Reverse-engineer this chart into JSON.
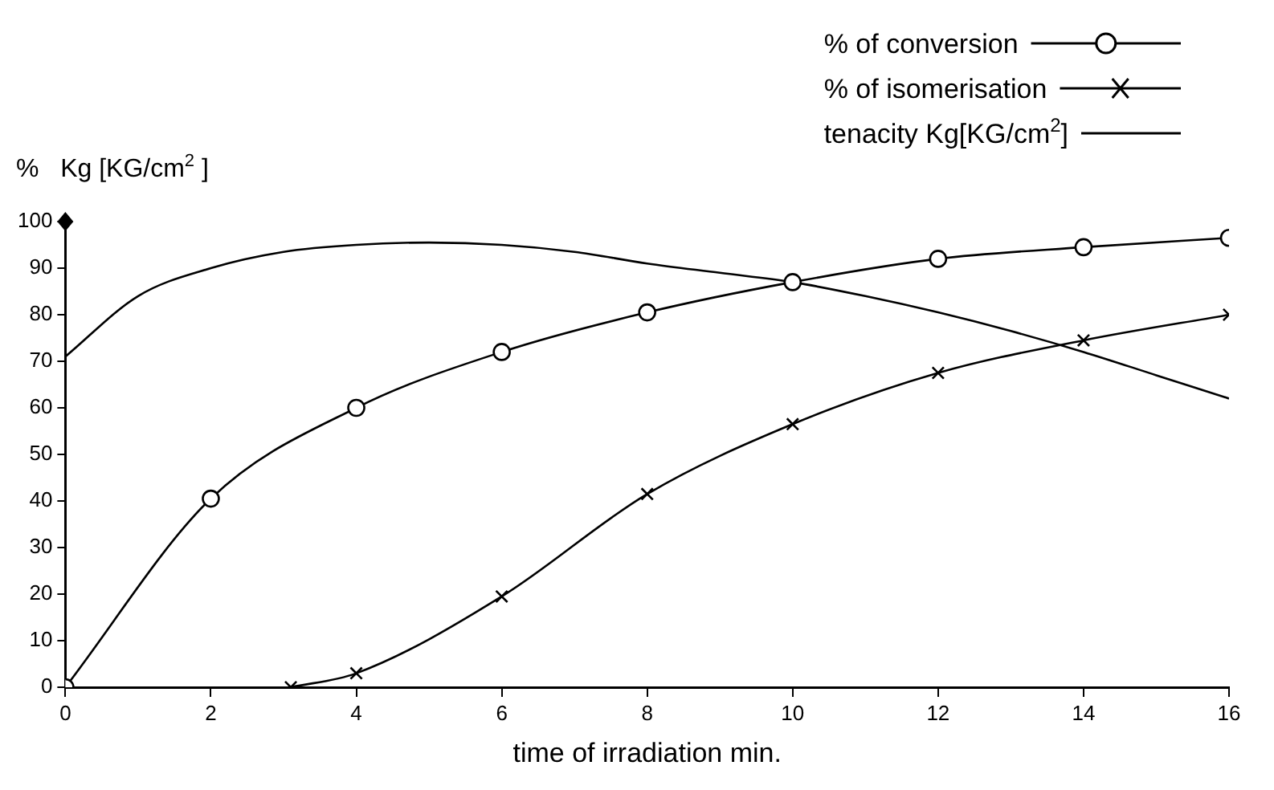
{
  "chart_data": {
    "type": "line",
    "xlabel": "time of irradiation min.",
    "ylabel": "%   Kg [KG/cm$^{2}$ ]",
    "xlim": [
      0,
      16
    ],
    "xticks": [
      0,
      2,
      4,
      6,
      8,
      10,
      12,
      14,
      16
    ],
    "ylim": [
      0,
      100
    ],
    "yticks": [
      0,
      10,
      20,
      30,
      40,
      50,
      60,
      70,
      80,
      90,
      100
    ],
    "grid": false,
    "legend": "top right",
    "line_style": "solid",
    "series": [
      {
        "name": "% of conversion",
        "color": "#000000",
        "marker": "circle",
        "x": [
          0,
          2,
          4,
          6,
          8,
          10,
          12,
          14,
          16
        ],
        "values": [
          0,
          40.5,
          60,
          72,
          80.5,
          87,
          92,
          94.5,
          96.5
        ]
      },
      {
        "name": "% of isomerisation",
        "color": "#000000",
        "marker": "cross",
        "x": [
          3.1,
          4,
          6,
          8,
          10,
          12,
          14,
          16
        ],
        "values": [
          0,
          3,
          19.5,
          41.5,
          56.5,
          67.5,
          74.5,
          80
        ]
      },
      {
        "name": "tenacity Kg[KG/cm$^{2}$]",
        "color": "#000000",
        "marker": "none",
        "x": [
          0,
          1,
          2,
          3,
          4,
          5,
          6,
          7,
          8,
          9,
          10,
          11,
          12,
          13,
          14,
          15,
          16
        ],
        "values": [
          71,
          84,
          90,
          93.5,
          95,
          95.5,
          95,
          93.5,
          91,
          89,
          87,
          84,
          80.5,
          76.5,
          72,
          67,
          62
        ]
      }
    ]
  }
}
